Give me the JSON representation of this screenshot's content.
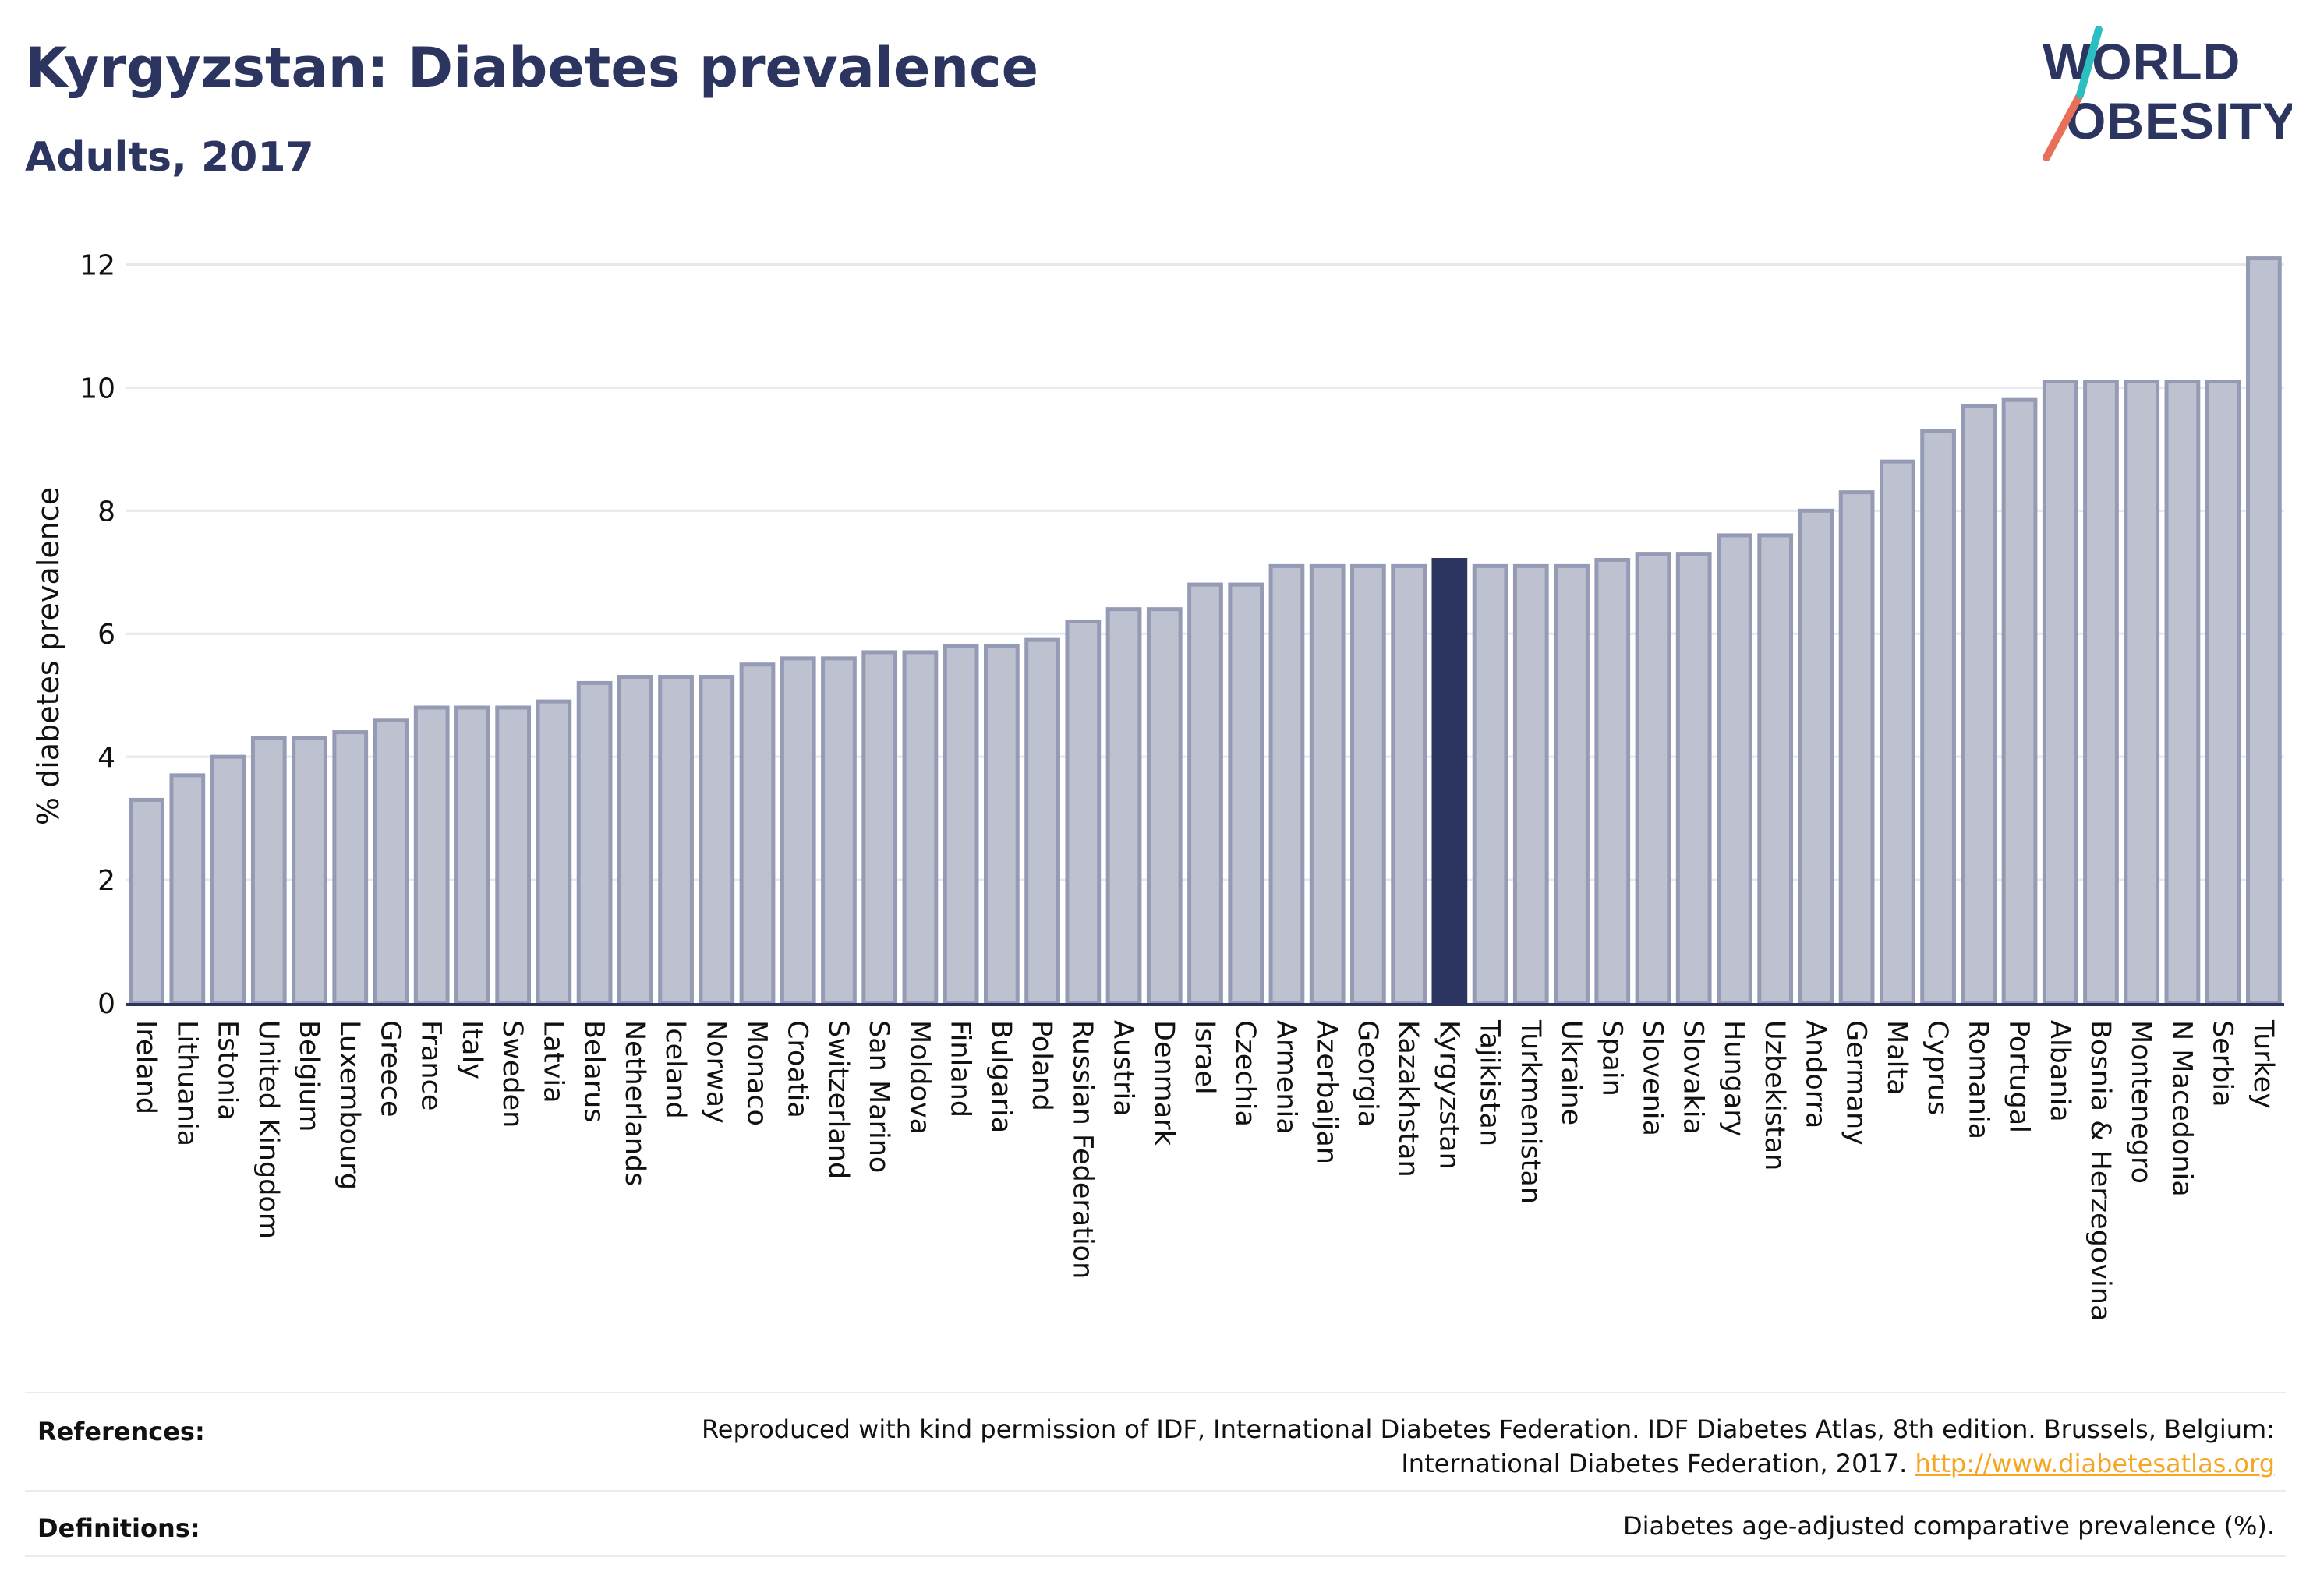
{
  "header": {
    "title": "Kyrgyzstan: Diabetes prevalence",
    "subtitle": "Adults, 2017"
  },
  "logo": {
    "line1": "WORLD",
    "line2": "OBESITY"
  },
  "colors": {
    "bar": "#bdc1d0",
    "bar_border": "#959bb5",
    "highlight": "#2b3560",
    "grid": "#e6e8ee",
    "title": "#2b3560",
    "link": "#f5a623"
  },
  "chart_data": {
    "type": "bar",
    "ylabel": "% diabetes prevalence",
    "ylim": [
      0,
      12.5
    ],
    "yticks": [
      0,
      2,
      4,
      6,
      8,
      10,
      12
    ],
    "highlight": "Kyrgyzstan",
    "grid": true,
    "categories": [
      "Ireland",
      "Lithuania",
      "Estonia",
      "United Kingdom",
      "Belgium",
      "Luxembourg",
      "Greece",
      "France",
      "Italy",
      "Sweden",
      "Latvia",
      "Belarus",
      "Netherlands",
      "Iceland",
      "Norway",
      "Monaco",
      "Croatia",
      "Switzerland",
      "San Marino",
      "Moldova",
      "Finland",
      "Bulgaria",
      "Poland",
      "Russian Federation",
      "Austria",
      "Denmark",
      "Israel",
      "Czechia",
      "Armenia",
      "Azerbaijan",
      "Georgia",
      "Kazakhstan",
      "Kyrgyzstan",
      "Tajikistan",
      "Turkmenistan",
      "Ukraine",
      "Spain",
      "Slovenia",
      "Slovakia",
      "Hungary",
      "Uzbekistan",
      "Andorra",
      "Germany",
      "Malta",
      "Cyprus",
      "Romania",
      "Portugal",
      "Albania",
      "Bosnia & Herzegovina",
      "Montenegro",
      "N Macedonia",
      "Serbia",
      "Turkey"
    ],
    "values": [
      3.3,
      3.7,
      4.0,
      4.3,
      4.3,
      4.4,
      4.6,
      4.8,
      4.8,
      4.8,
      4.9,
      5.2,
      5.3,
      5.3,
      5.3,
      5.5,
      5.6,
      5.6,
      5.7,
      5.7,
      5.8,
      5.8,
      5.9,
      6.2,
      6.4,
      6.4,
      6.8,
      6.8,
      7.1,
      7.1,
      7.1,
      7.1,
      7.2,
      7.1,
      7.1,
      7.1,
      7.2,
      7.3,
      7.3,
      7.6,
      7.6,
      8.0,
      8.3,
      8.8,
      9.3,
      9.7,
      9.8,
      10.1,
      10.1,
      10.1,
      10.1,
      10.1,
      12.1
    ]
  },
  "footer": {
    "references_label": "References:",
    "references_line1": "Reproduced with kind permission of IDF, International Diabetes Federation. IDF Diabetes Atlas, 8th edition. Brussels, Belgium:",
    "references_line2": "International Diabetes Federation, 2017.",
    "references_link": "http://www.diabetesatlas.org",
    "definitions_label": "Definitions:",
    "definitions_text": "Diabetes age-adjusted comparative prevalence (%)."
  }
}
